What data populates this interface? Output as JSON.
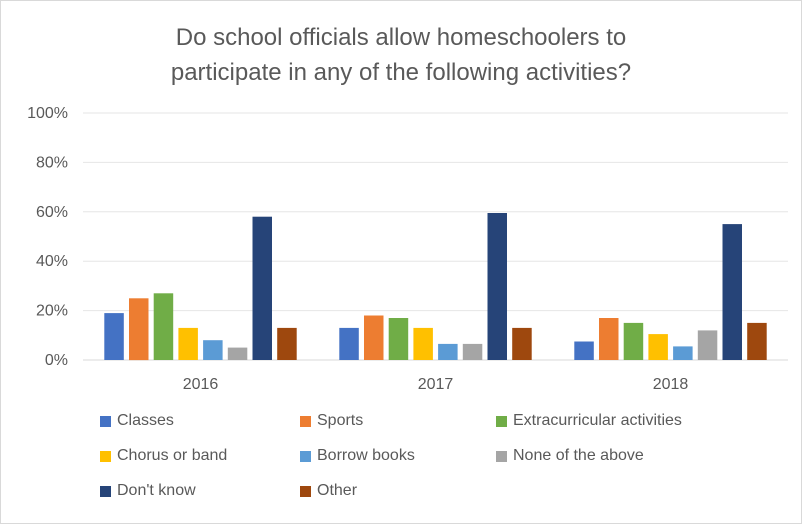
{
  "chart_data": {
    "type": "bar",
    "title_line1": "Do school officials allow homeschoolers  to",
    "title_line2": "participate in any of the following activities?",
    "categories": [
      "2016",
      "2017",
      "2018"
    ],
    "y_ticks": [
      "0%",
      "20%",
      "40%",
      "60%",
      "80%",
      "100%"
    ],
    "ylim": [
      0,
      100
    ],
    "series": [
      {
        "name": "Classes",
        "color": "#4472C4",
        "values": [
          19,
          13,
          7.5
        ]
      },
      {
        "name": "Sports",
        "color": "#ED7D31",
        "values": [
          25,
          18,
          17
        ]
      },
      {
        "name": "Extracurricular activities",
        "color": "#70AD47",
        "values": [
          27,
          17,
          15
        ]
      },
      {
        "name": "Chorus or band",
        "color": "#FFC000",
        "values": [
          13,
          13,
          10.5
        ]
      },
      {
        "name": "Borrow books",
        "color": "#5B9BD5",
        "values": [
          8,
          6.5,
          5.5
        ]
      },
      {
        "name": "None of the above",
        "color": "#A5A5A5",
        "values": [
          5,
          6.5,
          12
        ]
      },
      {
        "name": "Don't know",
        "color": "#264478",
        "values": [
          58,
          59.5,
          55
        ]
      },
      {
        "name": "Other",
        "color": "#9E480E",
        "values": [
          13,
          13,
          15
        ]
      }
    ]
  }
}
